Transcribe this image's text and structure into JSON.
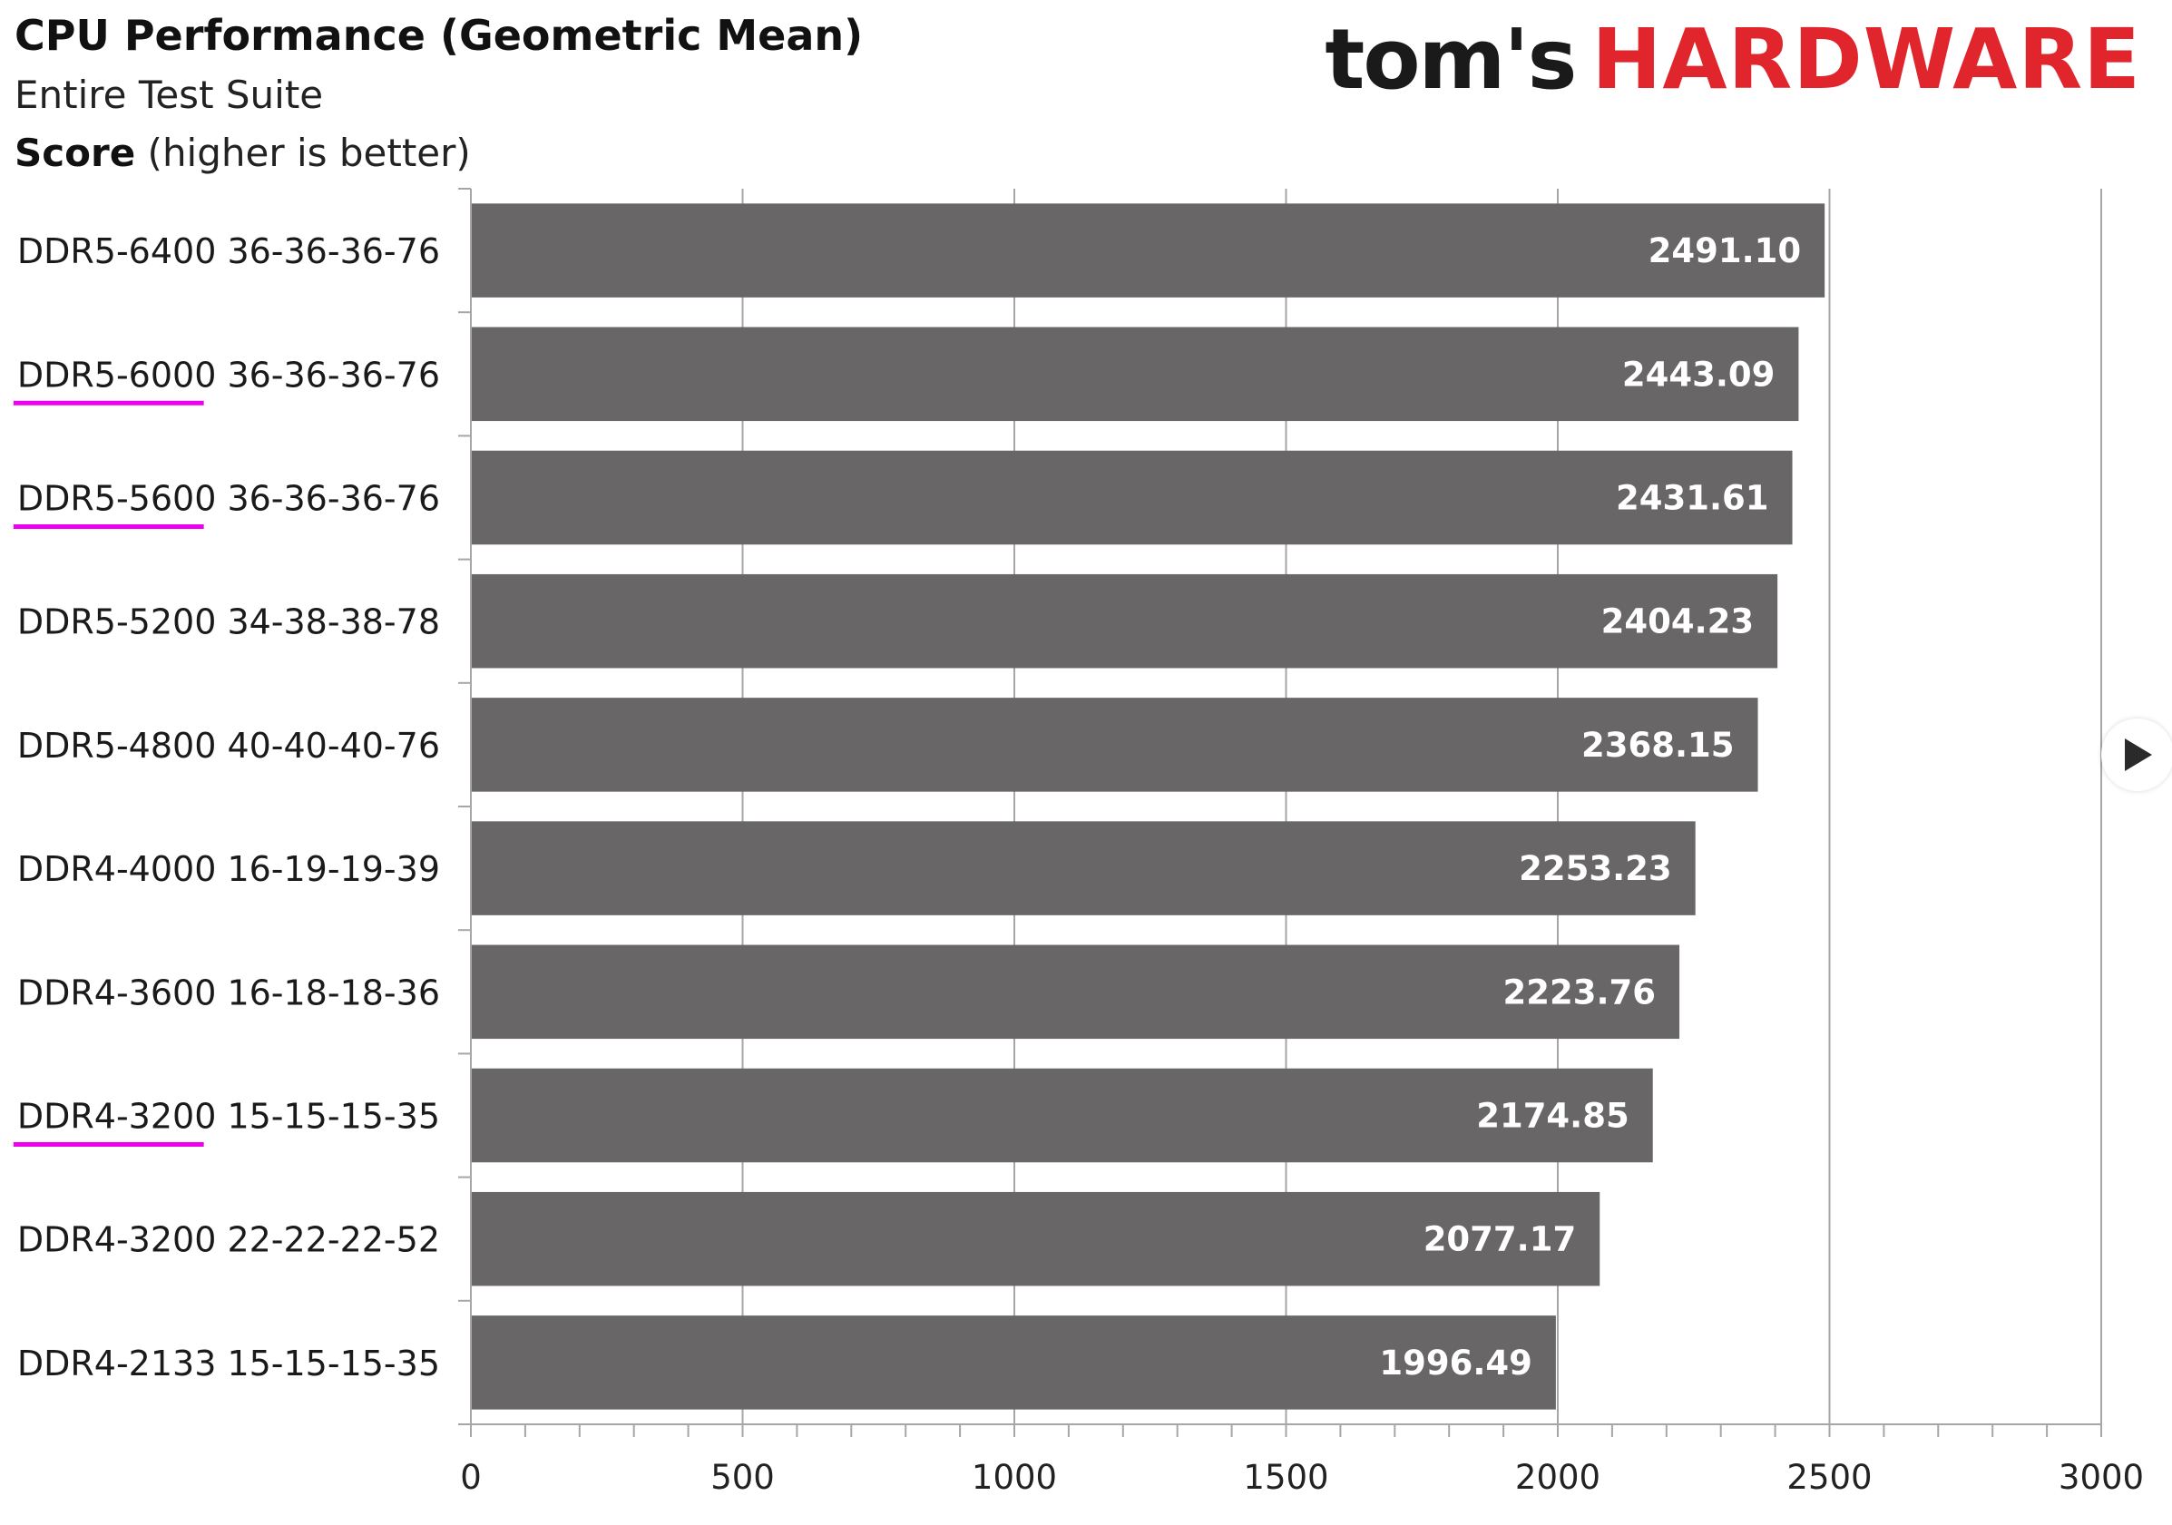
{
  "chart_data": {
    "type": "bar",
    "orientation": "horizontal",
    "title": "CPU Performance (Geometric Mean)",
    "subtitle": "Entire Test Suite",
    "ylabel": {
      "bold": "Score",
      "rest": " (higher is better)"
    },
    "categories": [
      "DDR5-6400 36-36-36-76",
      "DDR5-6000 36-36-36-76",
      "DDR5-5600 36-36-36-76",
      "DDR5-5200 34-38-38-78",
      "DDR5-4800 40-40-40-76",
      "DDR4-4000 16-19-19-39",
      "DDR4-3600 16-18-18-36",
      "DDR4-3200 15-15-15-35",
      "DDR4-3200 22-22-22-52",
      "DDR4-2133 15-15-15-35"
    ],
    "values": [
      2491.1,
      2443.09,
      2431.61,
      2404.23,
      2368.15,
      2253.23,
      2223.76,
      2174.85,
      2077.17,
      1996.49
    ],
    "value_labels": [
      "2491.10",
      "2443.09",
      "2431.61",
      "2404.23",
      "2368.15",
      "2253.23",
      "2223.76",
      "2174.85",
      "2077.17",
      "1996.49"
    ],
    "highlighted": [
      false,
      true,
      true,
      false,
      false,
      false,
      false,
      true,
      false,
      false
    ],
    "xlim": [
      0,
      3000
    ],
    "major_ticks": [
      0,
      500,
      1000,
      1500,
      2000,
      2500,
      3000
    ],
    "tick_labels": [
      "0",
      "500",
      "1000",
      "1500",
      "2000",
      "2500",
      "3000"
    ],
    "minor_tick_step": 100,
    "grid": true,
    "legend": "none",
    "colors": {
      "bar": "#686667",
      "highlight": "#ee00ee",
      "grid": "#a6a6a6"
    }
  },
  "logo": {
    "part1": "tom's",
    "part2": "HARDWARE"
  },
  "nav": {
    "next_icon": "play-icon"
  }
}
